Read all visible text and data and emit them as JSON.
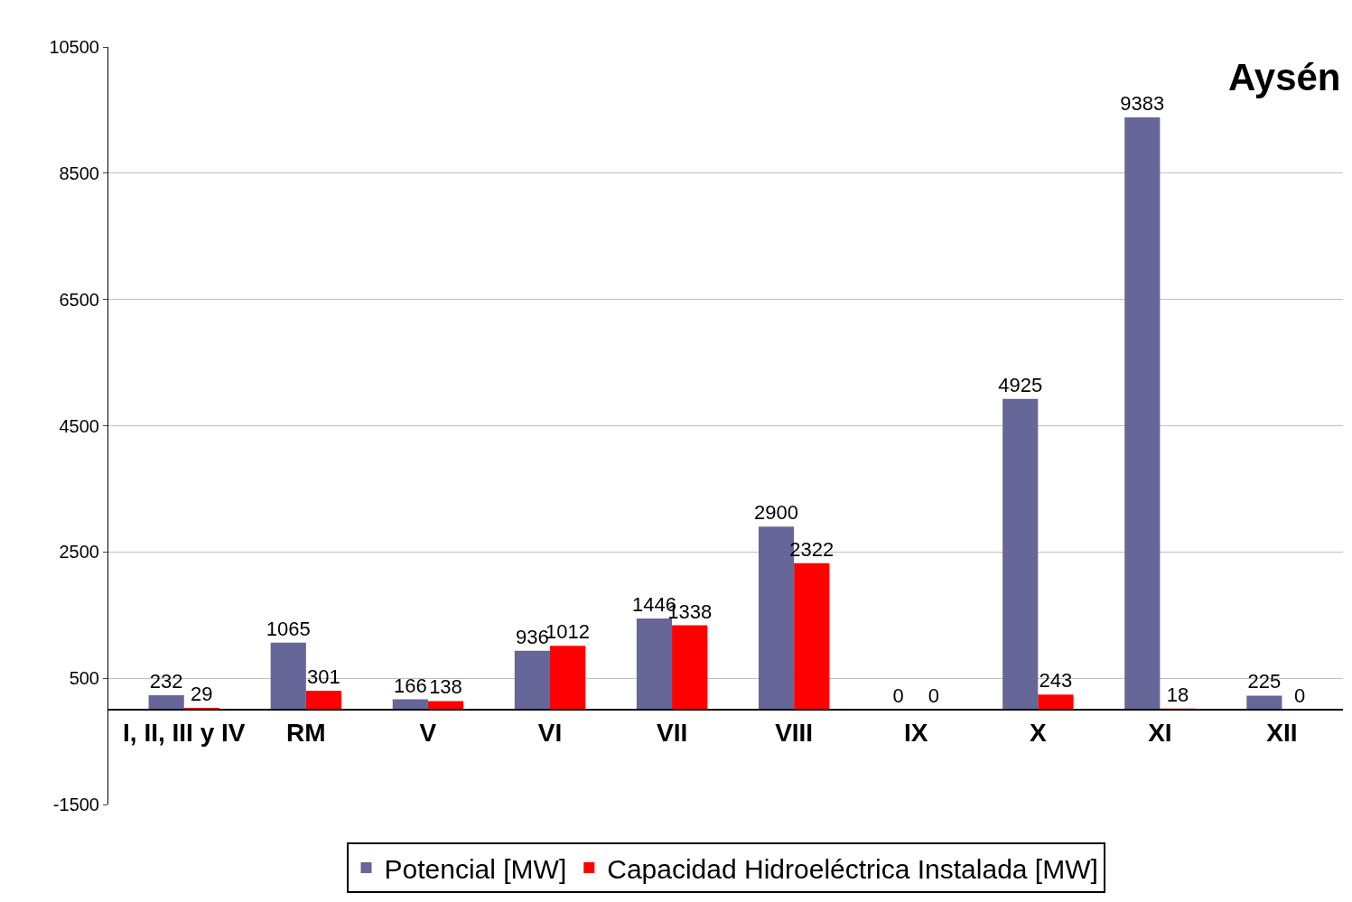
{
  "chart_data": {
    "type": "bar",
    "categories": [
      "I, II, III y IV",
      "RM",
      "V",
      "VI",
      "VII",
      "VIII",
      "IX",
      "X",
      "XI",
      "XII"
    ],
    "series": [
      {
        "name": "Potencial [MW]",
        "color": "#666699",
        "values": [
          232,
          1065,
          166,
          936,
          1446,
          2900,
          0,
          4925,
          9383,
          225
        ]
      },
      {
        "name": "Capacidad Hidroeléctrica Instalada [MW]",
        "color": "#ff0000",
        "values": [
          29,
          301,
          138,
          1012,
          1338,
          2322,
          0,
          243,
          18,
          0
        ]
      }
    ],
    "ylim": [
      -1500,
      10500
    ],
    "yticks": [
      -1500,
      500,
      2500,
      4500,
      6500,
      8500,
      10500
    ],
    "grid": "y",
    "legend": "bottom",
    "data_labels": true,
    "annotations": [
      "Aysén"
    ]
  }
}
